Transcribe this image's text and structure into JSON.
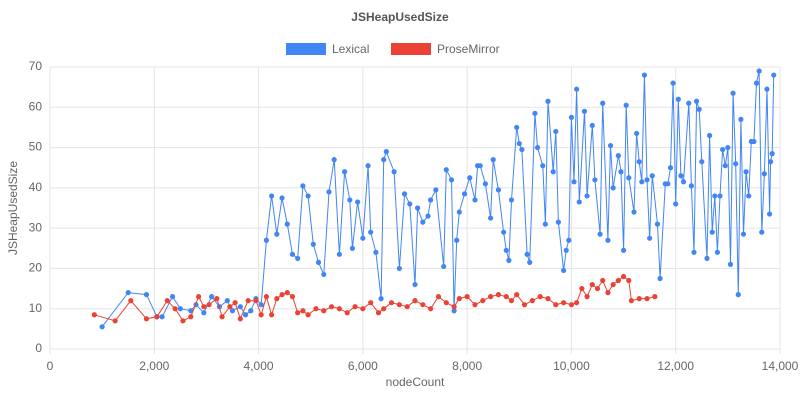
{
  "chart_data": {
    "type": "line",
    "title": "JSHeapUsedSize",
    "x_label": "nodeCount",
    "y_label": "JSHeapUsedSize",
    "xlim": [
      0,
      14000
    ],
    "ylim": [
      0,
      70
    ],
    "xticks": [
      0,
      {
        "value": 2000,
        "label": "2,000"
      },
      {
        "value": 4000,
        "label": "4,000"
      },
      {
        "value": 6000,
        "label": "6,000"
      },
      {
        "value": 8000,
        "label": "8,000"
      },
      {
        "value": 10000,
        "label": "10,000"
      },
      {
        "value": 12000,
        "label": "12,000"
      },
      {
        "value": 14000,
        "label": "14,000"
      }
    ],
    "yticks": [
      0,
      10,
      20,
      30,
      40,
      50,
      60,
      70
    ],
    "grid": true,
    "legend": "top",
    "series": [
      {
        "name": "Lexical",
        "color": "#4285f4",
        "x": [
          1000,
          1500,
          1850,
          2050,
          2150,
          2350,
          2500,
          2700,
          2800,
          2950,
          3100,
          3250,
          3400,
          3500,
          3650,
          3750,
          3850,
          3950,
          4050,
          4150,
          4250,
          4350,
          4450,
          4550,
          4650,
          4750,
          4850,
          4950,
          5050,
          5150,
          5250,
          5350,
          5450,
          5550,
          5650,
          5750,
          5800,
          5900,
          6000,
          6100,
          6150,
          6250,
          6350,
          6400,
          6450,
          6600,
          6700,
          6800,
          6900,
          7000,
          7050,
          7150,
          7250,
          7300,
          7400,
          7550,
          7600,
          7700,
          7750,
          7800,
          7850,
          7950,
          8050,
          8150,
          8200,
          8250,
          8350,
          8450,
          8500,
          8600,
          8700,
          8750,
          8800,
          8850,
          8950,
          9000,
          9050,
          9150,
          9200,
          9300,
          9350,
          9450,
          9500,
          9550,
          9650,
          9700,
          9750,
          9850,
          9900,
          9950,
          10000,
          10050,
          10100,
          10150,
          10250,
          10300,
          10400,
          10450,
          10550,
          10600,
          10700,
          10750,
          10800,
          10900,
          10950,
          11000,
          11050,
          11100,
          11200,
          11250,
          11300,
          11350,
          11400,
          11450,
          11500,
          11550,
          11650,
          11700,
          11800,
          11850,
          11900,
          11950,
          12000,
          12050,
          12100,
          12150,
          12250,
          12300,
          12350,
          12400,
          12450,
          12500,
          12600,
          12650,
          12700,
          12750,
          12800,
          12850,
          12900,
          12950,
          13000,
          13050,
          13100,
          13150,
          13200,
          13250,
          13300,
          13350,
          13400,
          13450,
          13500,
          13550,
          13600,
          13650,
          13700,
          13750,
          13800,
          13820,
          13850,
          13880
        ],
        "values": [
          5.5,
          14,
          13.5,
          8,
          8,
          13,
          10,
          9.5,
          11,
          9,
          13,
          10.5,
          12,
          9.5,
          10.5,
          8.5,
          9.5,
          12.5,
          11,
          27,
          38,
          28.5,
          37.5,
          31,
          23.5,
          22.5,
          40.5,
          38,
          26,
          21.5,
          18.5,
          39,
          47,
          23.5,
          44,
          37,
          25,
          36.5,
          27.5,
          45.5,
          29,
          24,
          12.5,
          47,
          49,
          44,
          20,
          38.5,
          36,
          16,
          35,
          31.5,
          33,
          37,
          39.5,
          20.5,
          44.5,
          42,
          9.5,
          27,
          34,
          38.5,
          42.5,
          37,
          45.5,
          45.5,
          41,
          32.5,
          47,
          39.5,
          29,
          24.5,
          22,
          37,
          55,
          51,
          49.5,
          23.5,
          21.5,
          58.5,
          50,
          45.5,
          31,
          61.5,
          44,
          54,
          31.5,
          19.5,
          24.5,
          27,
          57.5,
          41.5,
          64.5,
          36.5,
          59,
          38,
          55.5,
          42,
          28.5,
          61,
          27,
          50.5,
          40,
          48,
          44,
          24.5,
          60.5,
          42.5,
          34,
          53.5,
          46.5,
          41.5,
          68,
          42,
          27.5,
          43,
          31,
          17.5,
          41,
          41,
          45,
          66,
          36,
          62,
          43,
          41.5,
          61,
          40.5,
          24,
          61.5,
          59.5,
          46.5,
          22.5,
          53,
          29,
          38,
          24,
          38,
          49.5,
          45.5,
          50,
          21,
          63.5,
          46,
          13.5,
          57,
          28.5,
          44,
          38,
          51.5,
          51.5,
          66,
          69,
          29,
          43.5,
          64.5,
          33.5,
          46.5,
          48.5,
          68
        ]
      },
      {
        "name": "ProseMirror",
        "color": "#ea4335",
        "x": [
          850,
          1250,
          1550,
          1850,
          2050,
          2250,
          2400,
          2550,
          2700,
          2850,
          2950,
          3050,
          3200,
          3300,
          3450,
          3550,
          3650,
          3800,
          3950,
          4050,
          4150,
          4250,
          4350,
          4450,
          4550,
          4650,
          4750,
          4850,
          4950,
          5100,
          5250,
          5400,
          5550,
          5700,
          5850,
          6000,
          6150,
          6300,
          6400,
          6550,
          6700,
          6850,
          7000,
          7150,
          7300,
          7450,
          7600,
          7750,
          7850,
          8000,
          8150,
          8300,
          8450,
          8600,
          8750,
          8850,
          8950,
          9100,
          9250,
          9400,
          9550,
          9700,
          9850,
          10000,
          10100,
          10200,
          10300,
          10400,
          10500,
          10600,
          10700,
          10800,
          10900,
          11000,
          11100,
          11150,
          11300,
          11450,
          11600
        ],
        "values": [
          8.5,
          7,
          12,
          7.5,
          8,
          12,
          10,
          7,
          8,
          13,
          10.5,
          11,
          12.5,
          8,
          10.5,
          11.5,
          7.5,
          12,
          12,
          8.5,
          13,
          8.5,
          12.5,
          13.5,
          14,
          13,
          9,
          9.5,
          8.5,
          10,
          9.5,
          10.5,
          10,
          9,
          10.5,
          10,
          11.5,
          9,
          10,
          11.5,
          11,
          10.5,
          12,
          11,
          10,
          13,
          11.5,
          10.5,
          12.5,
          13,
          11,
          12,
          13,
          13.5,
          13,
          12,
          13.5,
          11,
          12,
          13,
          12.5,
          11,
          11.5,
          11,
          11.5,
          15,
          13,
          16,
          15,
          17,
          14,
          16,
          17,
          18,
          17,
          12,
          12.5,
          12.5,
          13
        ]
      }
    ]
  }
}
